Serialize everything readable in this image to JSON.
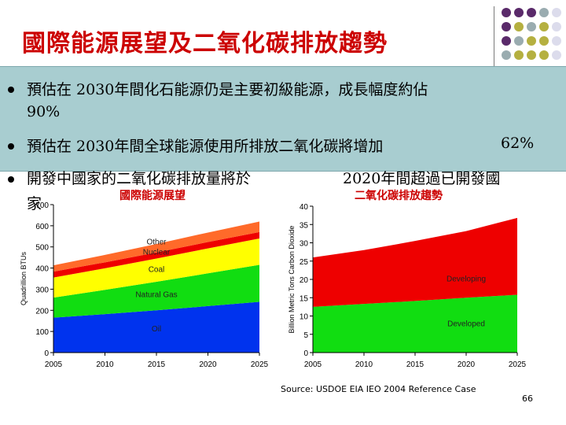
{
  "slide": {
    "title": "國際能源展望及二氧化碳排放趨勢",
    "page_number": "66",
    "source": "Source: USDOE EIA IEO 2004 Reference Case"
  },
  "bullets": [
    {
      "line1": "預估在 2030年間化石能源仍是主要初級能源，成長幅度約佔",
      "line2": "90%"
    },
    {
      "line1": "預估在 2030年間全球能源使用所排放二氧化碳將增加",
      "tail": "62%"
    },
    {
      "line1": "開發中國家的二氧化碳排放量將於",
      "tail": "2020年間超過已開發國",
      "line2": "家"
    }
  ],
  "colors": {
    "title": "#cc0000",
    "panel": "#a8cdd0",
    "oil": "#0033ee",
    "gas": "#11dd11",
    "coal": "#ffff00",
    "nuclear": "#ee0000",
    "other": "#ff6a2a",
    "developing": "#ee0000",
    "developed": "#11dd11",
    "dot_purple": "#5a2a6a",
    "dot_olive": "#b5b040",
    "dot_gray": "#9aacb0",
    "dot_light": "#dcdcec"
  },
  "chart_data": [
    {
      "type": "area",
      "stacked": true,
      "title": "國際能源展望",
      "xlabel": "",
      "ylabel": "Quadrillion BTUs",
      "x": [
        2005,
        2010,
        2015,
        2020,
        2025
      ],
      "xlim": [
        2005,
        2025
      ],
      "ylim": [
        0,
        700
      ],
      "yticks": [
        0,
        100,
        200,
        300,
        400,
        500,
        600,
        700
      ],
      "grid": false,
      "series": [
        {
          "name": "Oil",
          "values": [
            165,
            182,
            200,
            220,
            240
          ]
        },
        {
          "name": "Natural Gas",
          "values": [
            95,
            115,
            135,
            155,
            175
          ]
        },
        {
          "name": "Coal",
          "values": [
            95,
            102,
            110,
            118,
            125
          ]
        },
        {
          "name": "Nuclear",
          "values": [
            28,
            28,
            29,
            30,
            30
          ]
        },
        {
          "name": "Other",
          "values": [
            30,
            35,
            40,
            45,
            50
          ]
        }
      ],
      "labels": [
        "Other",
        "Nuclear",
        "Coal",
        "Natural Gas",
        "Oil"
      ]
    },
    {
      "type": "area",
      "stacked": true,
      "title": "二氧化碳排放趨勢",
      "xlabel": "",
      "ylabel": "Billion Metric Tons Carbon Dioxide",
      "x": [
        2005,
        2010,
        2015,
        2020,
        2025
      ],
      "xlim": [
        2005,
        2025
      ],
      "ylim": [
        0,
        40
      ],
      "yticks": [
        0,
        5,
        10,
        15,
        20,
        25,
        30,
        35,
        40
      ],
      "grid": false,
      "series": [
        {
          "name": "Developed",
          "values": [
            12.5,
            13.3,
            14.1,
            15.0,
            15.8
          ]
        },
        {
          "name": "Developing",
          "values": [
            13.5,
            14.7,
            16.4,
            18.2,
            21.0
          ]
        }
      ],
      "labels": [
        "Developed",
        "Developing"
      ]
    }
  ]
}
